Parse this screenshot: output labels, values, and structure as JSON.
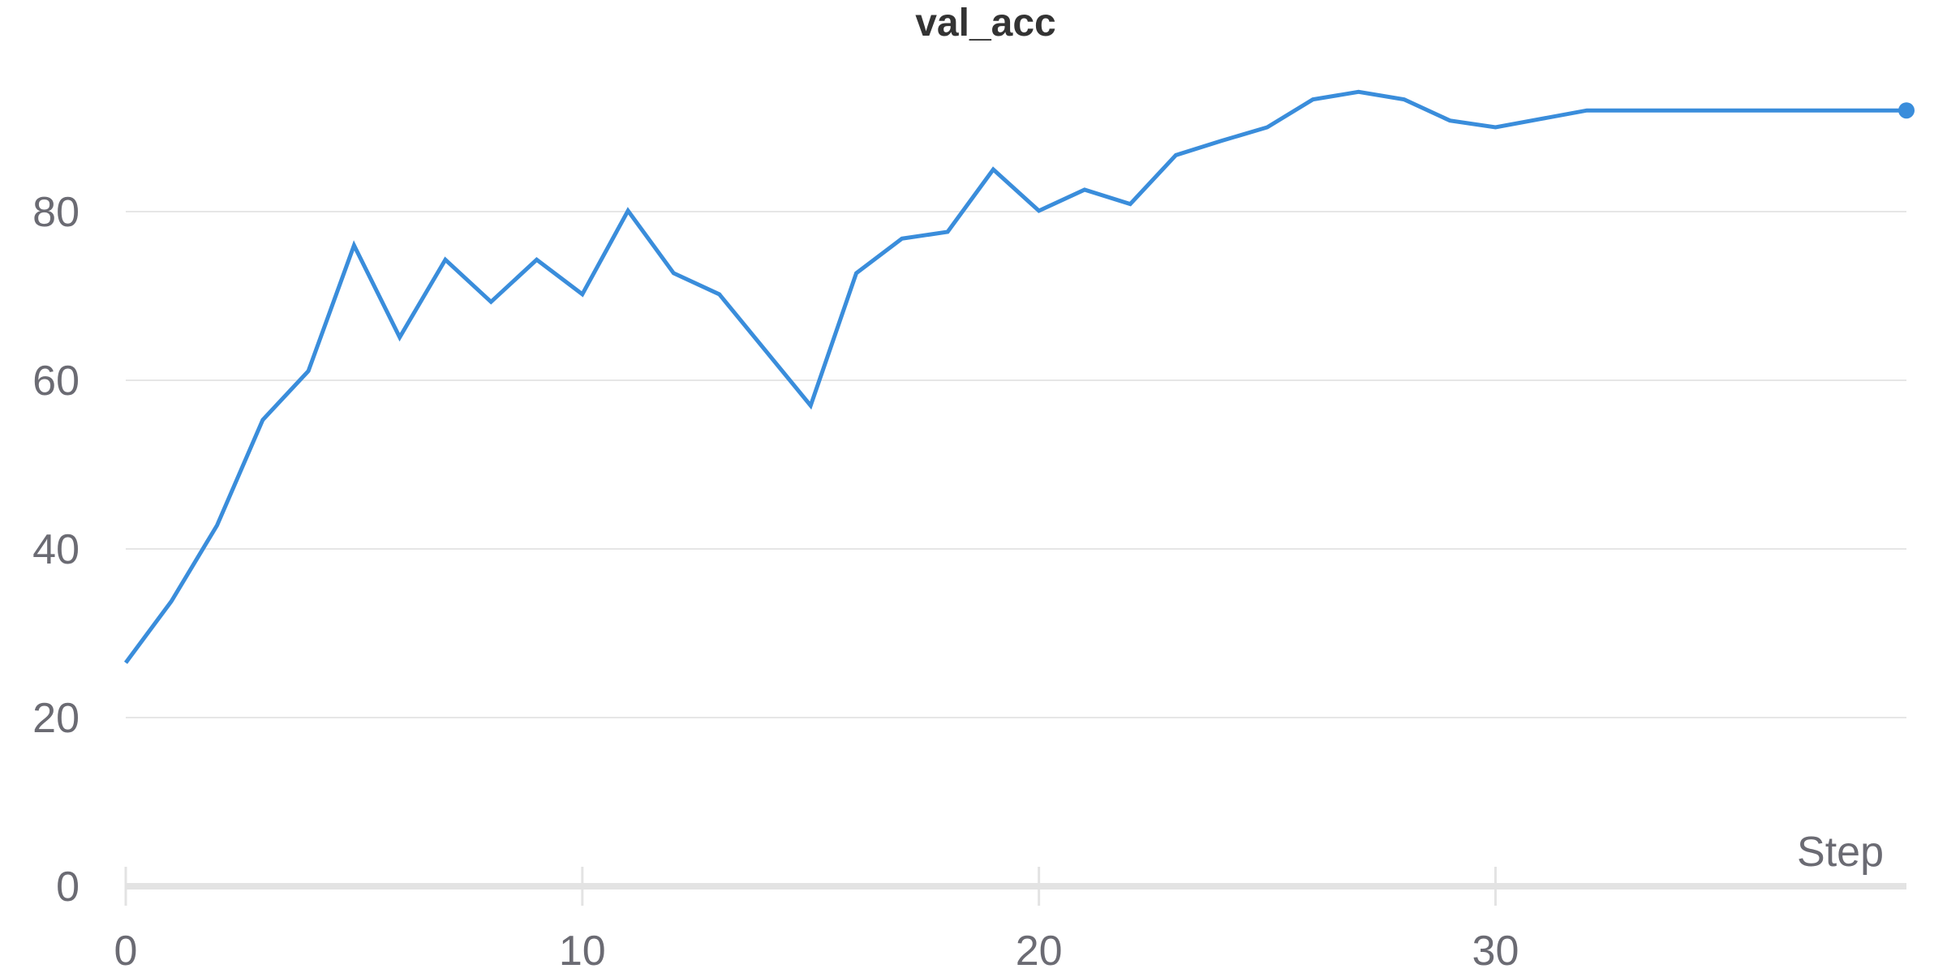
{
  "chart_data": {
    "type": "line",
    "title": "val_acc",
    "xlabel": "Step",
    "ylabel": "",
    "xlim": [
      0,
      39
    ],
    "ylim": [
      0,
      100
    ],
    "x_ticks": [
      0,
      10,
      20,
      30
    ],
    "y_ticks": [
      0,
      20,
      40,
      60,
      80
    ],
    "grid": true,
    "legend": "none",
    "line_color": "#3a8ddb",
    "series": [
      {
        "x": [
          0,
          1,
          2,
          3,
          4,
          5,
          6,
          7,
          8,
          9,
          10,
          11,
          12,
          13,
          14,
          15,
          16,
          17,
          18,
          19,
          20,
          21,
          22,
          23,
          24,
          25,
          26,
          27,
          28,
          29,
          30,
          31,
          32,
          33,
          34,
          35,
          36,
          37,
          38,
          39
        ],
        "values": [
          26.5,
          33.8,
          42.8,
          55.3,
          61.1,
          76.0,
          65.1,
          74.3,
          69.3,
          74.3,
          70.2,
          80.1,
          72.7,
          70.2,
          63.6,
          57.0,
          72.7,
          76.8,
          77.6,
          85.0,
          80.1,
          82.6,
          80.9,
          86.7,
          88.4,
          90.0,
          93.3,
          94.2,
          93.3,
          90.8,
          90.0,
          91.0,
          92.0,
          92.0,
          92.0,
          92.0,
          92.0,
          92.0,
          92.0,
          92.0
        ]
      }
    ]
  }
}
